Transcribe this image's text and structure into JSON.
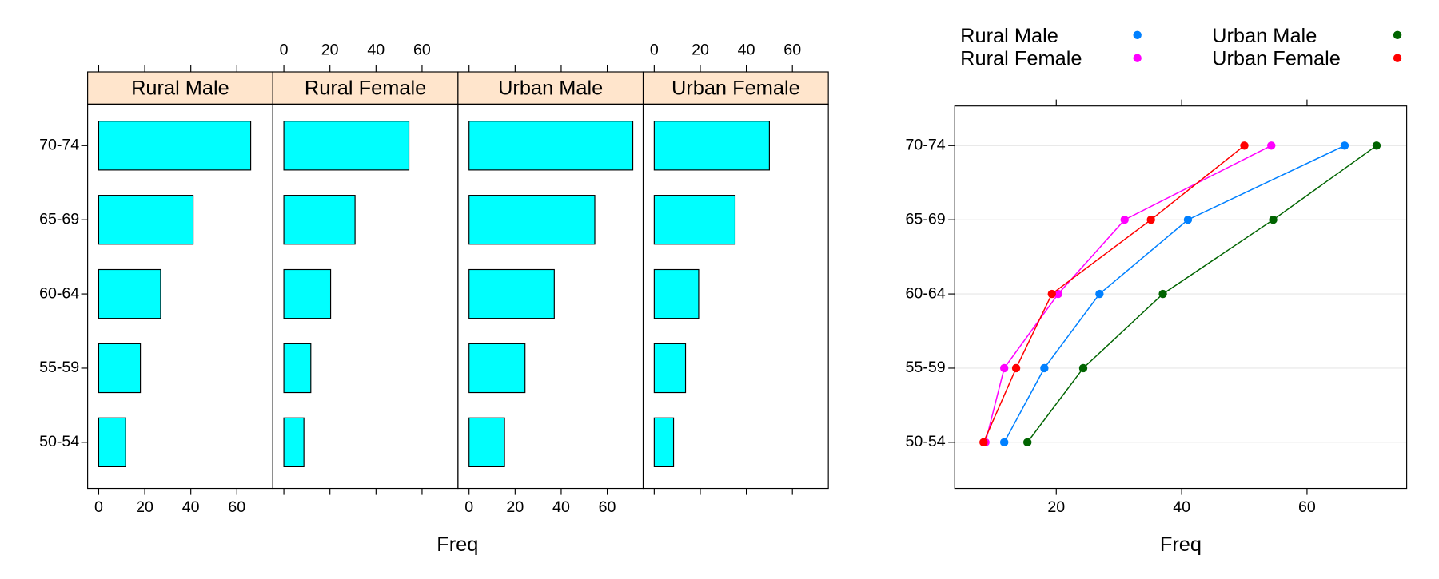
{
  "chart_data": [
    {
      "type": "bar",
      "orientation": "horizontal",
      "categories": [
        "50-54",
        "55-59",
        "60-64",
        "65-69",
        "70-74"
      ],
      "series": [
        {
          "name": "Rural Male",
          "color": "#00ffff",
          "values": [
            11.7,
            18.1,
            26.9,
            41.0,
            66.0
          ]
        },
        {
          "name": "Rural Female",
          "color": "#00ffff",
          "values": [
            8.7,
            11.7,
            20.3,
            30.9,
            54.3
          ]
        },
        {
          "name": "Urban Male",
          "color": "#00ffff",
          "values": [
            15.4,
            24.3,
            37.0,
            54.6,
            71.1
          ]
        },
        {
          "name": "Urban Female",
          "color": "#00ffff",
          "values": [
            8.4,
            13.6,
            19.3,
            35.1,
            50.0
          ]
        }
      ],
      "strip_color": "#ffe5cc",
      "xlabel": "Freq",
      "xlim": [
        -4.8,
        75.6
      ],
      "xticks": [
        0,
        20,
        40,
        60
      ]
    },
    {
      "type": "line",
      "orientation": "horizontal",
      "categories": [
        "50-54",
        "55-59",
        "60-64",
        "65-69",
        "70-74"
      ],
      "series": [
        {
          "name": "Rural Male",
          "color": "#0080ff",
          "values": [
            11.7,
            18.1,
            26.9,
            41.0,
            66.0
          ]
        },
        {
          "name": "Rural Female",
          "color": "#ff00ff",
          "values": [
            8.7,
            11.7,
            20.3,
            30.9,
            54.3
          ]
        },
        {
          "name": "Urban Male",
          "color": "#006400",
          "values": [
            15.4,
            24.3,
            37.0,
            54.6,
            71.1
          ]
        },
        {
          "name": "Urban Female",
          "color": "#ff0000",
          "values": [
            8.4,
            13.6,
            19.3,
            35.1,
            50.0
          ]
        }
      ],
      "xlabel": "Freq",
      "xlim": [
        3.8,
        75.9
      ],
      "xticks": [
        20,
        40,
        60
      ],
      "grid": true
    }
  ]
}
